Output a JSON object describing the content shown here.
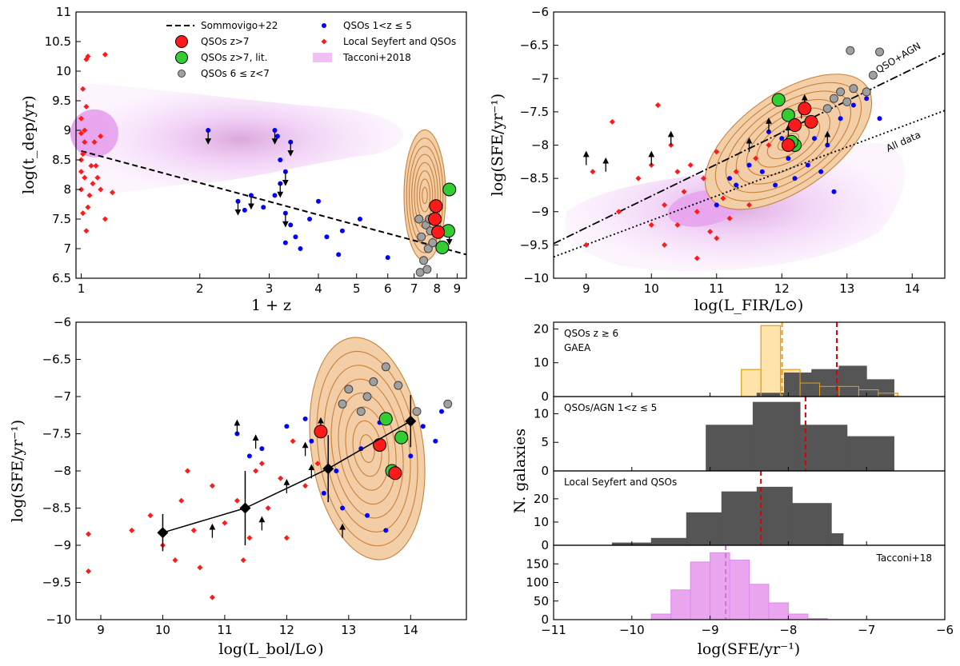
{
  "colors": {
    "red": "#ff1a1a",
    "blue": "#0000ff",
    "green": "#33cc33",
    "grey": "#a0a0a0",
    "tacconi": "#dd88ee",
    "contour": "#c8823c",
    "hist_dark": "#555555",
    "gaea": "#ffcc66",
    "gaea_edge": "#e0a020",
    "median_red": "#dd0000",
    "median_pink": "#d070d0"
  },
  "chart_data": [
    {
      "id": "panel_tdep",
      "type": "scatter",
      "xlabel": "1 + z",
      "ylabel": "log(t_dep/yr)",
      "xscale": "log",
      "xlim": [
        0.97,
        9.5
      ],
      "ylim": [
        6.5,
        11.0
      ],
      "xticks": [
        1,
        2,
        3,
        4,
        5,
        6,
        7,
        8,
        9
      ],
      "yticks": [
        6.5,
        7.0,
        7.5,
        8.0,
        8.5,
        9.0,
        9.5,
        10.0,
        10.5,
        11.0
      ],
      "legend": [
        {
          "label": "Sommovigo+22",
          "marker": "dashed"
        },
        {
          "label": "QSOs z>7",
          "marker": "big-red"
        },
        {
          "label": "QSOs z>7, lit.",
          "marker": "big-green"
        },
        {
          "label": "QSOs 6 ≤ z<7",
          "marker": "grey"
        },
        {
          "label": "QSOs 1<z ≤ 5",
          "marker": "blue"
        },
        {
          "label": "Local Seyfert and QSOs",
          "marker": "red-diamond"
        },
        {
          "label": "Tacconi+2018",
          "marker": "pink-patch"
        }
      ],
      "sommovigo_line": {
        "x": [
          1.0,
          9.5
        ],
        "y": [
          8.65,
          6.9
        ]
      },
      "series": {
        "qso_z7": [
          [
            7.95,
            7.72
          ],
          [
            7.9,
            7.5
          ],
          [
            8.05,
            7.28
          ]
        ],
        "qso_z7_lit": [
          [
            8.6,
            8.0
          ],
          [
            8.55,
            7.3
          ],
          [
            8.25,
            7.02
          ]
        ],
        "qso_6_7": [
          [
            7.2,
            7.5
          ],
          [
            7.3,
            7.2
          ],
          [
            7.5,
            7.4
          ],
          [
            7.6,
            7.0
          ],
          [
            7.7,
            7.3
          ],
          [
            7.4,
            6.8
          ],
          [
            7.8,
            7.1
          ],
          [
            7.25,
            6.6
          ],
          [
            7.55,
            6.65
          ],
          [
            7.65,
            7.5
          ]
        ],
        "qso_1_5": [
          [
            2.1,
            9.0
          ],
          [
            2.5,
            7.8
          ],
          [
            2.7,
            7.9
          ],
          [
            2.6,
            7.65
          ],
          [
            3.1,
            9.0
          ],
          [
            3.15,
            8.9
          ],
          [
            3.2,
            8.5
          ],
          [
            3.3,
            8.3
          ],
          [
            3.2,
            8.1
          ],
          [
            3.1,
            7.9
          ],
          [
            3.3,
            7.6
          ],
          [
            3.4,
            7.4
          ],
          [
            3.5,
            7.2
          ],
          [
            3.6,
            7.0
          ],
          [
            3.3,
            7.1
          ],
          [
            3.8,
            7.5
          ],
          [
            4.0,
            7.8
          ],
          [
            4.2,
            7.2
          ],
          [
            4.6,
            7.3
          ],
          [
            4.5,
            6.9
          ],
          [
            5.1,
            7.5
          ],
          [
            6.0,
            6.85
          ],
          [
            2.9,
            7.7
          ],
          [
            3.4,
            8.8
          ]
        ],
        "local_seyfert": [
          [
            1.0,
            8.0
          ],
          [
            1.0,
            8.3
          ],
          [
            1.01,
            8.6
          ],
          [
            1.02,
            9.0
          ],
          [
            1.0,
            9.2
          ],
          [
            1.03,
            9.4
          ],
          [
            1.0,
            8.5
          ],
          [
            1.01,
            7.6
          ],
          [
            1.05,
            7.9
          ],
          [
            1.02,
            8.8
          ],
          [
            1.06,
            8.4
          ],
          [
            1.01,
            9.7
          ],
          [
            1.03,
            10.2
          ],
          [
            1.04,
            10.25
          ],
          [
            1.15,
            10.28
          ],
          [
            1.08,
            8.8
          ],
          [
            1.1,
            8.2
          ],
          [
            1.12,
            8.9
          ],
          [
            1.15,
            7.5
          ],
          [
            1.2,
            7.95
          ],
          [
            1.03,
            7.3
          ],
          [
            1.04,
            7.7
          ],
          [
            1.0,
            8.95
          ],
          [
            1.07,
            8.1
          ],
          [
            1.12,
            8.0
          ],
          [
            1.02,
            8.2
          ],
          [
            1.09,
            8.4
          ]
        ],
        "upper_limits": [
          [
            2.1,
            9.0
          ],
          [
            2.5,
            7.8
          ],
          [
            2.7,
            7.9
          ],
          [
            3.1,
            9.0
          ],
          [
            3.3,
            8.3
          ],
          [
            3.4,
            8.8
          ],
          [
            3.2,
            8.1
          ],
          [
            3.3,
            7.6
          ],
          [
            8.6,
            7.3
          ]
        ]
      }
    },
    {
      "id": "panel_sfe_lfir",
      "type": "scatter",
      "xlabel": "log(L_FIR/L⊙)",
      "ylabel": "log(SFE/yr⁻¹)",
      "xlim": [
        8.5,
        14.5
      ],
      "ylim": [
        -10.0,
        -6.0
      ],
      "xticks": [
        9,
        10,
        11,
        12,
        13,
        14
      ],
      "yticks": [
        -10.0,
        -9.5,
        -9.0,
        -8.5,
        -8.0,
        -7.5,
        -7.0,
        -6.5,
        -6.0
      ],
      "fits": {
        "qso_agn": {
          "label": "QSO+AGN",
          "x": [
            8.5,
            14.5
          ],
          "y": [
            -9.48,
            -6.62
          ]
        },
        "all_data": {
          "label": "All data",
          "x": [
            8.5,
            14.5
          ],
          "y": [
            -9.68,
            -7.48
          ]
        }
      },
      "series": {
        "qso_z7": [
          [
            12.35,
            -7.45
          ],
          [
            12.45,
            -7.65
          ],
          [
            12.2,
            -7.7
          ],
          [
            12.1,
            -8.0
          ]
        ],
        "qso_z7_lit": [
          [
            11.95,
            -7.32
          ],
          [
            12.1,
            -7.55
          ],
          [
            12.2,
            -8.0
          ],
          [
            12.15,
            -7.95
          ]
        ],
        "qso_6_7": [
          [
            12.8,
            -7.3
          ],
          [
            12.9,
            -7.2
          ],
          [
            13.0,
            -7.35
          ],
          [
            13.1,
            -7.15
          ],
          [
            13.3,
            -7.2
          ],
          [
            13.4,
            -6.95
          ],
          [
            13.5,
            -6.6
          ],
          [
            13.05,
            -6.58
          ],
          [
            12.7,
            -7.45
          ]
        ],
        "qso_1_5": [
          [
            11.5,
            -8.3
          ],
          [
            11.8,
            -7.8
          ],
          [
            12.0,
            -7.9
          ],
          [
            12.3,
            -7.5
          ],
          [
            12.5,
            -7.9
          ],
          [
            12.7,
            -8.0
          ],
          [
            12.9,
            -7.6
          ],
          [
            13.1,
            -7.4
          ],
          [
            13.3,
            -7.3
          ],
          [
            11.3,
            -8.6
          ],
          [
            11.0,
            -8.9
          ],
          [
            12.1,
            -8.2
          ],
          [
            12.6,
            -8.4
          ],
          [
            12.8,
            -8.7
          ],
          [
            11.7,
            -8.4
          ],
          [
            13.5,
            -7.6
          ],
          [
            11.2,
            -8.5
          ],
          [
            12.4,
            -8.3
          ],
          [
            11.9,
            -8.6
          ],
          [
            12.2,
            -8.5
          ]
        ],
        "local_seyfert": [
          [
            9.0,
            -9.5
          ],
          [
            9.1,
            -8.4
          ],
          [
            9.4,
            -7.65
          ],
          [
            9.8,
            -8.5
          ],
          [
            10.0,
            -8.3
          ],
          [
            10.1,
            -7.4
          ],
          [
            10.2,
            -8.9
          ],
          [
            10.3,
            -8.0
          ],
          [
            10.4,
            -9.2
          ],
          [
            10.5,
            -8.7
          ],
          [
            10.6,
            -8.3
          ],
          [
            10.7,
            -9.0
          ],
          [
            10.8,
            -8.5
          ],
          [
            10.9,
            -9.3
          ],
          [
            11.0,
            -8.1
          ],
          [
            11.1,
            -8.8
          ],
          [
            11.2,
            -9.1
          ],
          [
            11.3,
            -8.4
          ],
          [
            11.5,
            -8.9
          ],
          [
            11.6,
            -8.2
          ],
          [
            11.8,
            -8.0
          ],
          [
            10.0,
            -9.2
          ],
          [
            10.2,
            -9.5
          ],
          [
            10.4,
            -8.4
          ],
          [
            9.5,
            -9.0
          ],
          [
            11.0,
            -9.4
          ],
          [
            10.7,
            -9.7
          ]
        ],
        "upper_limits": [
          [
            9.0,
            -8.3
          ],
          [
            9.3,
            -8.4
          ],
          [
            10.0,
            -8.3
          ],
          [
            10.3,
            -8.0
          ],
          [
            11.5,
            -8.1
          ],
          [
            11.8,
            -7.8
          ],
          [
            12.1,
            -7.9
          ],
          [
            12.3,
            -7.6
          ],
          [
            12.7,
            -8.0
          ],
          [
            12.35,
            -7.45
          ]
        ]
      }
    },
    {
      "id": "panel_sfe_lbol",
      "type": "scatter",
      "xlabel": "log(L_bol/L⊙)",
      "ylabel": "log(SFE/yr⁻¹)",
      "xlim": [
        8.6,
        14.9
      ],
      "ylim": [
        -10.0,
        -6.0
      ],
      "xticks": [
        9,
        10,
        11,
        12,
        13,
        14
      ],
      "yticks": [
        -10.0,
        -9.5,
        -9.0,
        -8.5,
        -8.0,
        -7.5,
        -7.0,
        -6.5,
        -6.0
      ],
      "binned": {
        "x": [
          10.0,
          11.33,
          12.67,
          14.0
        ],
        "y": [
          -8.83,
          -8.5,
          -7.97,
          -7.33
        ],
        "err": [
          0.25,
          0.5,
          0.45,
          0.35
        ]
      },
      "series": {
        "qso_z7": [
          [
            12.55,
            -7.47
          ],
          [
            13.5,
            -7.65
          ],
          [
            13.75,
            -8.03
          ]
        ],
        "qso_z7_lit": [
          [
            13.6,
            -7.3
          ],
          [
            13.85,
            -7.55
          ],
          [
            13.7,
            -8.0
          ]
        ],
        "qso_6_7": [
          [
            12.9,
            -7.1
          ],
          [
            13.0,
            -6.9
          ],
          [
            13.2,
            -7.2
          ],
          [
            13.4,
            -6.8
          ],
          [
            13.6,
            -6.6
          ],
          [
            13.3,
            -7.0
          ],
          [
            14.1,
            -7.2
          ],
          [
            14.6,
            -7.1
          ],
          [
            13.8,
            -6.85
          ]
        ],
        "qso_1_5": [
          [
            11.2,
            -7.5
          ],
          [
            11.4,
            -7.8
          ],
          [
            11.6,
            -7.7
          ],
          [
            12.0,
            -7.4
          ],
          [
            12.4,
            -7.6
          ],
          [
            12.8,
            -8.0
          ],
          [
            13.2,
            -7.7
          ],
          [
            13.5,
            -7.35
          ],
          [
            13.9,
            -7.5
          ],
          [
            14.2,
            -7.4
          ],
          [
            14.4,
            -7.6
          ],
          [
            14.5,
            -7.2
          ],
          [
            12.6,
            -8.3
          ],
          [
            12.9,
            -8.5
          ],
          [
            13.3,
            -8.6
          ],
          [
            13.6,
            -8.8
          ],
          [
            12.3,
            -7.3
          ],
          [
            14.0,
            -7.8
          ]
        ],
        "local_seyfert": [
          [
            8.8,
            -8.85
          ],
          [
            8.8,
            -9.35
          ],
          [
            9.5,
            -8.8
          ],
          [
            9.8,
            -8.6
          ],
          [
            10.0,
            -9.0
          ],
          [
            10.2,
            -9.2
          ],
          [
            10.3,
            -8.4
          ],
          [
            10.5,
            -8.8
          ],
          [
            10.6,
            -9.3
          ],
          [
            10.8,
            -9.7
          ],
          [
            10.8,
            -8.2
          ],
          [
            11.0,
            -8.7
          ],
          [
            11.2,
            -8.4
          ],
          [
            11.4,
            -8.9
          ],
          [
            11.5,
            -8.0
          ],
          [
            11.7,
            -8.5
          ],
          [
            11.9,
            -8.1
          ],
          [
            12.1,
            -7.6
          ],
          [
            12.3,
            -8.2
          ],
          [
            12.0,
            -8.9
          ],
          [
            11.3,
            -9.2
          ],
          [
            10.4,
            -8.0
          ],
          [
            11.6,
            -7.9
          ],
          [
            12.5,
            -7.9
          ]
        ],
        "upper_limits": [
          [
            11.2,
            -7.5
          ],
          [
            11.5,
            -7.7
          ],
          [
            10.8,
            -8.9
          ],
          [
            12.0,
            -8.3
          ],
          [
            12.4,
            -8.1
          ],
          [
            11.6,
            -8.8
          ],
          [
            12.55,
            -7.47
          ],
          [
            12.9,
            -8.9
          ],
          [
            12.3,
            -7.8
          ]
        ]
      }
    },
    {
      "id": "panel_hist",
      "type": "bar",
      "xlabel": "log(SFE/yr⁻¹)",
      "ylabel": "N. galaxies",
      "xlim": [
        -11,
        -6
      ],
      "xticks": [
        -11,
        -10,
        -9,
        -8,
        -7,
        -6
      ],
      "subpanels": [
        {
          "label": "QSOs z ≳ 6",
          "sublabel": "GAEA",
          "ylim": [
            0,
            22
          ],
          "yticks": [
            0,
            10,
            20
          ],
          "bins": [
            -8.4,
            -8.05,
            -7.7,
            -7.35,
            -7.0,
            -6.65
          ],
          "values": [
            1,
            7,
            8,
            9,
            5
          ],
          "median": -7.38,
          "gaea_bins": [
            -8.6,
            -8.35,
            -8.1,
            -7.85,
            -7.6,
            -7.35,
            -7.1,
            -6.85,
            -6.6
          ],
          "gaea_values": [
            8,
            21,
            8,
            4,
            3,
            3,
            2,
            1
          ],
          "gaea_median": -8.08
        },
        {
          "label": "QSOs/AGN 1<z ≲ 5",
          "ylim": [
            0,
            13
          ],
          "yticks": [
            0,
            5,
            10
          ],
          "bins": [
            -9.05,
            -8.45,
            -7.85,
            -7.25,
            -6.65
          ],
          "values": [
            8,
            12,
            8,
            6
          ],
          "median": -7.78
        },
        {
          "label": "Local Seyfert and QSOs",
          "ylim": [
            0,
            32
          ],
          "yticks": [
            0,
            10,
            20
          ],
          "bins": [
            -10.25,
            -9.75,
            -9.3,
            -8.85,
            -8.4,
            -7.95,
            -7.45,
            -7.3
          ],
          "values": [
            1,
            3,
            14,
            23,
            25,
            18,
            5
          ],
          "median": -8.35
        },
        {
          "label": "Tacconi+18",
          "ylim": [
            0,
            200
          ],
          "yticks": [
            0,
            50,
            100,
            150
          ],
          "bins": [
            -9.75,
            -9.5,
            -9.25,
            -9.0,
            -8.75,
            -8.5,
            -8.25,
            -8.0,
            -7.75,
            -7.5
          ],
          "values": [
            15,
            80,
            155,
            180,
            160,
            95,
            45,
            15,
            3
          ],
          "median": -8.8
        }
      ]
    }
  ]
}
